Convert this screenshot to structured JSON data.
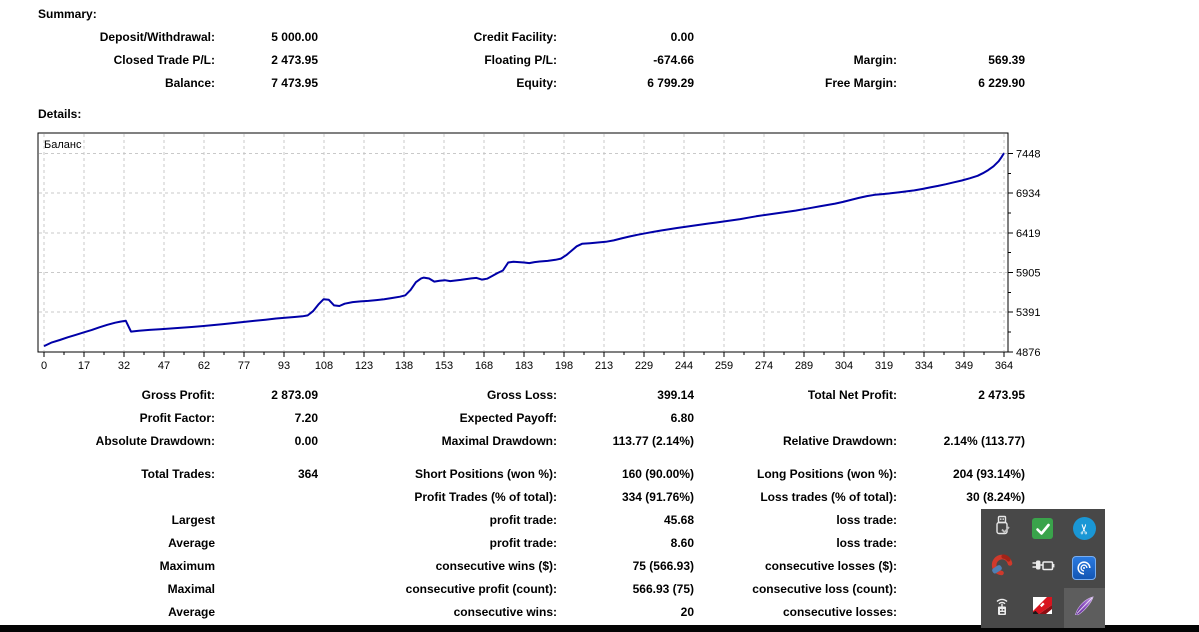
{
  "summary": {
    "heading": "Summary:",
    "rows": [
      [
        "Deposit/Withdrawal:",
        "5 000.00",
        "Credit Facility:",
        "0.00",
        "",
        ""
      ],
      [
        "Closed Trade P/L:",
        "2 473.95",
        "Floating P/L:",
        "-674.66",
        "Margin:",
        "569.39"
      ],
      [
        "Balance:",
        "7 473.95",
        "Equity:",
        "6 799.29",
        "Free Margin:",
        "6 229.90"
      ]
    ]
  },
  "details": {
    "heading": "Details:",
    "group1": [
      [
        "Gross Profit:",
        "2 873.09",
        "Gross Loss:",
        "399.14",
        "Total Net Profit:",
        "2 473.95"
      ],
      [
        "Profit Factor:",
        "7.20",
        "Expected Payoff:",
        "6.80",
        "",
        ""
      ],
      [
        "Absolute Drawdown:",
        "0.00",
        "Maximal Drawdown:",
        "113.77 (2.14%)",
        "Relative Drawdown:",
        "2.14% (113.77)"
      ]
    ],
    "group2": [
      [
        "Total Trades:",
        "364",
        "Short Positions (won %):",
        "160 (90.00%)",
        "Long Positions (won %):",
        "204 (93.14%)"
      ],
      [
        "",
        "",
        "Profit Trades (% of total):",
        "334 (91.76%)",
        "Loss trades (% of total):",
        "30 (8.24%)"
      ]
    ],
    "group3": [
      [
        "Largest",
        "",
        "profit trade:",
        "45.68",
        "loss trade:",
        ""
      ],
      [
        "Average",
        "",
        "profit trade:",
        "8.60",
        "loss trade:",
        ""
      ],
      [
        "Maximum",
        "",
        "consecutive wins ($):",
        "75 (566.93)",
        "consecutive losses ($):",
        ""
      ],
      [
        "Maximal",
        "",
        "consecutive profit (count):",
        "566.93 (75)",
        "consecutive loss (count):",
        ""
      ],
      [
        "Average",
        "",
        "consecutive wins:",
        "20",
        "consecutive losses:",
        ""
      ]
    ]
  },
  "chart_data": {
    "type": "line",
    "title": "Баланс",
    "legend_position": "top-left-inside",
    "grid": true,
    "line_color": "#0000A8",
    "grid_color": "#C9C9C9",
    "xlim": [
      0,
      364
    ],
    "ylim": [
      4876,
      7713
    ],
    "x_tick_labels": [
      0,
      17,
      32,
      47,
      62,
      77,
      93,
      108,
      123,
      138,
      153,
      168,
      183,
      198,
      213,
      229,
      244,
      259,
      274,
      289,
      304,
      319,
      334,
      349,
      364
    ],
    "y_tick_labels": [
      4876,
      5391,
      5905,
      6419,
      6934,
      7448
    ],
    "series": [
      {
        "name": "Баланс",
        "points": [
          [
            0,
            4952
          ],
          [
            3,
            5000
          ],
          [
            6,
            5032
          ],
          [
            9,
            5066
          ],
          [
            12,
            5098
          ],
          [
            15,
            5130
          ],
          [
            18,
            5160
          ],
          [
            21,
            5196
          ],
          [
            24,
            5228
          ],
          [
            27,
            5255
          ],
          [
            29,
            5270
          ],
          [
            31,
            5280
          ],
          [
            33,
            5140
          ],
          [
            36,
            5152
          ],
          [
            40,
            5162
          ],
          [
            44,
            5170
          ],
          [
            48,
            5180
          ],
          [
            52,
            5190
          ],
          [
            56,
            5200
          ],
          [
            60,
            5212
          ],
          [
            64,
            5224
          ],
          [
            68,
            5238
          ],
          [
            72,
            5252
          ],
          [
            76,
            5266
          ],
          [
            80,
            5280
          ],
          [
            84,
            5295
          ],
          [
            88,
            5310
          ],
          [
            92,
            5322
          ],
          [
            95,
            5330
          ],
          [
            98,
            5338
          ],
          [
            100,
            5350
          ],
          [
            102,
            5405
          ],
          [
            104,
            5490
          ],
          [
            106,
            5560
          ],
          [
            108,
            5552
          ],
          [
            110,
            5480
          ],
          [
            112,
            5472
          ],
          [
            114,
            5502
          ],
          [
            117,
            5522
          ],
          [
            120,
            5532
          ],
          [
            123,
            5538
          ],
          [
            126,
            5548
          ],
          [
            129,
            5560
          ],
          [
            132,
            5576
          ],
          [
            135,
            5592
          ],
          [
            137,
            5610
          ],
          [
            139,
            5680
          ],
          [
            141,
            5780
          ],
          [
            143,
            5830
          ],
          [
            144,
            5840
          ],
          [
            146,
            5828
          ],
          [
            148,
            5788
          ],
          [
            150,
            5798
          ],
          [
            152,
            5806
          ],
          [
            154,
            5794
          ],
          [
            156,
            5802
          ],
          [
            158,
            5810
          ],
          [
            160,
            5820
          ],
          [
            162,
            5830
          ],
          [
            164,
            5836
          ],
          [
            166,
            5814
          ],
          [
            168,
            5826
          ],
          [
            170,
            5862
          ],
          [
            172,
            5900
          ],
          [
            174,
            5932
          ],
          [
            176,
            6035
          ],
          [
            178,
            6046
          ],
          [
            180,
            6040
          ],
          [
            182,
            6036
          ],
          [
            184,
            6028
          ],
          [
            186,
            6040
          ],
          [
            188,
            6048
          ],
          [
            191,
            6056
          ],
          [
            194,
            6070
          ],
          [
            196,
            6086
          ],
          [
            198,
            6130
          ],
          [
            200,
            6188
          ],
          [
            202,
            6245
          ],
          [
            204,
            6278
          ],
          [
            207,
            6286
          ],
          [
            210,
            6294
          ],
          [
            213,
            6304
          ],
          [
            216,
            6322
          ],
          [
            219,
            6348
          ],
          [
            222,
            6372
          ],
          [
            225,
            6394
          ],
          [
            228,
            6414
          ],
          [
            231,
            6432
          ],
          [
            234,
            6450
          ],
          [
            237,
            6466
          ],
          [
            240,
            6482
          ],
          [
            243,
            6496
          ],
          [
            246,
            6511
          ],
          [
            249,
            6526
          ],
          [
            252,
            6540
          ],
          [
            255,
            6554
          ],
          [
            258,
            6568
          ],
          [
            261,
            6582
          ],
          [
            264,
            6598
          ],
          [
            267,
            6616
          ],
          [
            270,
            6634
          ],
          [
            273,
            6650
          ],
          [
            276,
            6664
          ],
          [
            279,
            6678
          ],
          [
            282,
            6692
          ],
          [
            285,
            6708
          ],
          [
            288,
            6726
          ],
          [
            291,
            6744
          ],
          [
            294,
            6762
          ],
          [
            297,
            6780
          ],
          [
            300,
            6798
          ],
          [
            303,
            6820
          ],
          [
            306,
            6846
          ],
          [
            309,
            6872
          ],
          [
            312,
            6896
          ],
          [
            315,
            6912
          ],
          [
            318,
            6922
          ],
          [
            321,
            6932
          ],
          [
            324,
            6944
          ],
          [
            327,
            6956
          ],
          [
            330,
            6970
          ],
          [
            333,
            6988
          ],
          [
            336,
            7008
          ],
          [
            339,
            7028
          ],
          [
            342,
            7050
          ],
          [
            345,
            7074
          ],
          [
            348,
            7098
          ],
          [
            351,
            7126
          ],
          [
            354,
            7158
          ],
          [
            356,
            7192
          ],
          [
            358,
            7232
          ],
          [
            360,
            7282
          ],
          [
            362,
            7348
          ],
          [
            363,
            7398
          ],
          [
            364,
            7452
          ]
        ]
      }
    ]
  },
  "tray": {
    "background": "#484848",
    "highlight": "#5D5D5D",
    "icons": [
      "usb-drive-icon",
      "green-check-icon",
      "scissors-icon",
      "ccleaner-icon",
      "power-plug-icon",
      "spiral-icon",
      "rf-remote-icon",
      "kaspersky-icon",
      "feather-icon"
    ],
    "scissors_glyph": "✂"
  }
}
